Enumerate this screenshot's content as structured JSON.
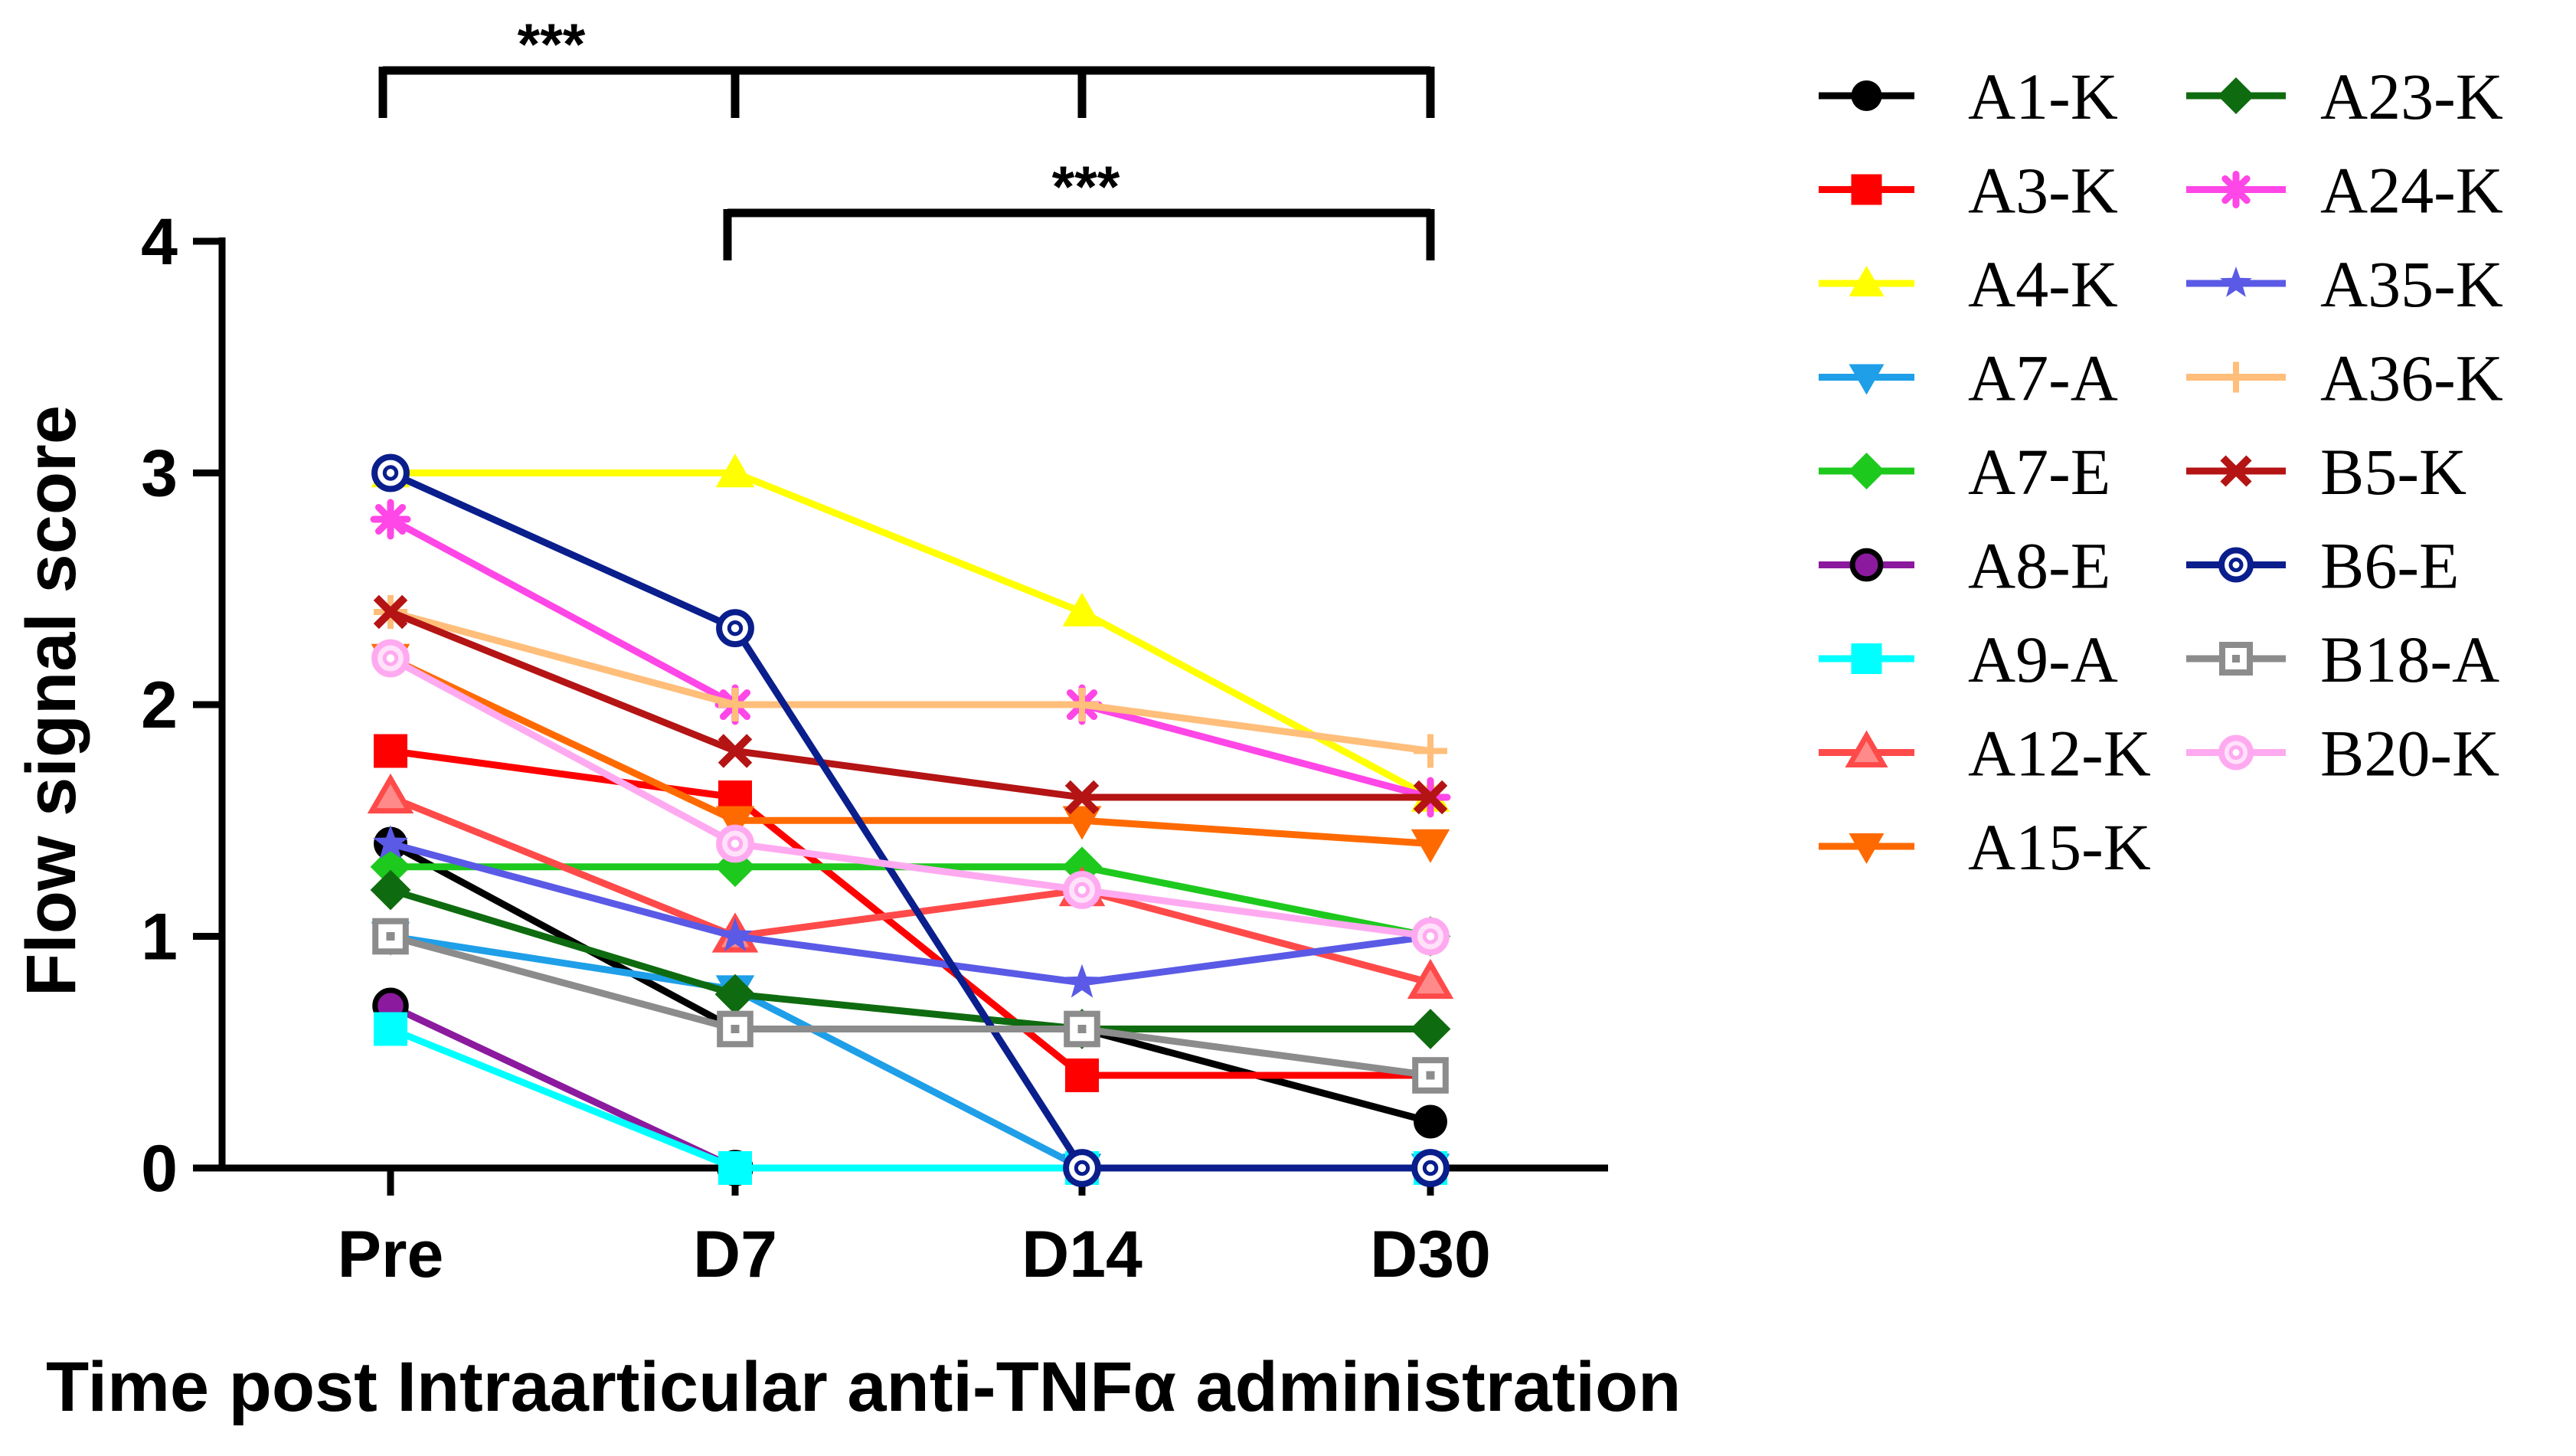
{
  "chart_data": {
    "type": "line",
    "title": "",
    "xlabel": "Time post Intraarticular anti-TNFα administration",
    "ylabel": "Flow signal score",
    "categories": [
      "Pre",
      "D7",
      "D14",
      "D30"
    ],
    "ylim": [
      0,
      4
    ],
    "yticks": [
      "0",
      "1",
      "2",
      "3",
      "4"
    ],
    "grid": false,
    "legend_position": "right",
    "significance": [
      {
        "label": "***",
        "from": "Pre",
        "to": "D30",
        "inner_ticks": [
          "D7",
          "D14"
        ]
      },
      {
        "label": "***",
        "from": "D7",
        "to": "D30",
        "inner_ticks": []
      }
    ],
    "series": [
      {
        "name": "A1-K",
        "color": "#000000",
        "marker": "circle",
        "values": [
          1.4,
          0.6,
          0.6,
          0.2
        ]
      },
      {
        "name": "A3-K",
        "color": "#ff0000",
        "marker": "square",
        "values": [
          1.8,
          1.6,
          0.4,
          0.4
        ]
      },
      {
        "name": "A4-K",
        "color": "#ffff00",
        "marker": "triangle-up",
        "values": [
          3.0,
          3.0,
          2.4,
          1.6
        ]
      },
      {
        "name": "A7-A",
        "color": "#1e9fe8",
        "marker": "triangle-down",
        "values": [
          1.0,
          0.77,
          0.0,
          0.0
        ]
      },
      {
        "name": "A7-E",
        "color": "#1ec91e",
        "marker": "diamond",
        "values": [
          1.3,
          1.3,
          1.3,
          1.0
        ]
      },
      {
        "name": "A8-E",
        "color": "#8b1a9e",
        "marker": "circle-outline-black",
        "values": [
          0.7,
          0.0,
          0.0,
          0.0
        ]
      },
      {
        "name": "A9-A",
        "color": "#00ffff",
        "marker": "square",
        "values": [
          0.6,
          0.0,
          0.0,
          0.0
        ]
      },
      {
        "name": "A12-K",
        "color": "#ff4a4a",
        "marker": "triangle-up-outline",
        "values": [
          1.6,
          1.0,
          1.2,
          0.8
        ]
      },
      {
        "name": "A15-K",
        "color": "#ff6a00",
        "marker": "triangle-down",
        "values": [
          2.2,
          1.5,
          1.5,
          1.4
        ]
      },
      {
        "name": "A23-K",
        "color": "#0f6b0f",
        "marker": "diamond",
        "values": [
          1.2,
          0.75,
          0.6,
          0.6
        ]
      },
      {
        "name": "A24-K",
        "color": "#ff46e6",
        "marker": "asterisk",
        "values": [
          2.8,
          2.0,
          2.0,
          1.6
        ]
      },
      {
        "name": "A35-K",
        "color": "#5a5ae6",
        "marker": "star",
        "values": [
          1.4,
          1.0,
          0.8,
          1.0
        ]
      },
      {
        "name": "A36-K",
        "color": "#ffbe7a",
        "marker": "plus",
        "values": [
          2.4,
          2.0,
          2.0,
          1.8
        ]
      },
      {
        "name": "B5-K",
        "color": "#b41414",
        "marker": "x",
        "values": [
          2.4,
          1.8,
          1.6,
          1.6
        ]
      },
      {
        "name": "B6-E",
        "color": "#0a1e8c",
        "marker": "circle-open",
        "values": [
          3.0,
          2.33,
          0.0,
          0.0
        ]
      },
      {
        "name": "B18-A",
        "color": "#8c8c8c",
        "marker": "square-open",
        "values": [
          1.0,
          0.6,
          0.6,
          0.4
        ]
      },
      {
        "name": "B20-K",
        "color": "#ffaaf0",
        "marker": "circle-open-light",
        "values": [
          2.2,
          1.4,
          1.2,
          1.0
        ]
      }
    ]
  }
}
